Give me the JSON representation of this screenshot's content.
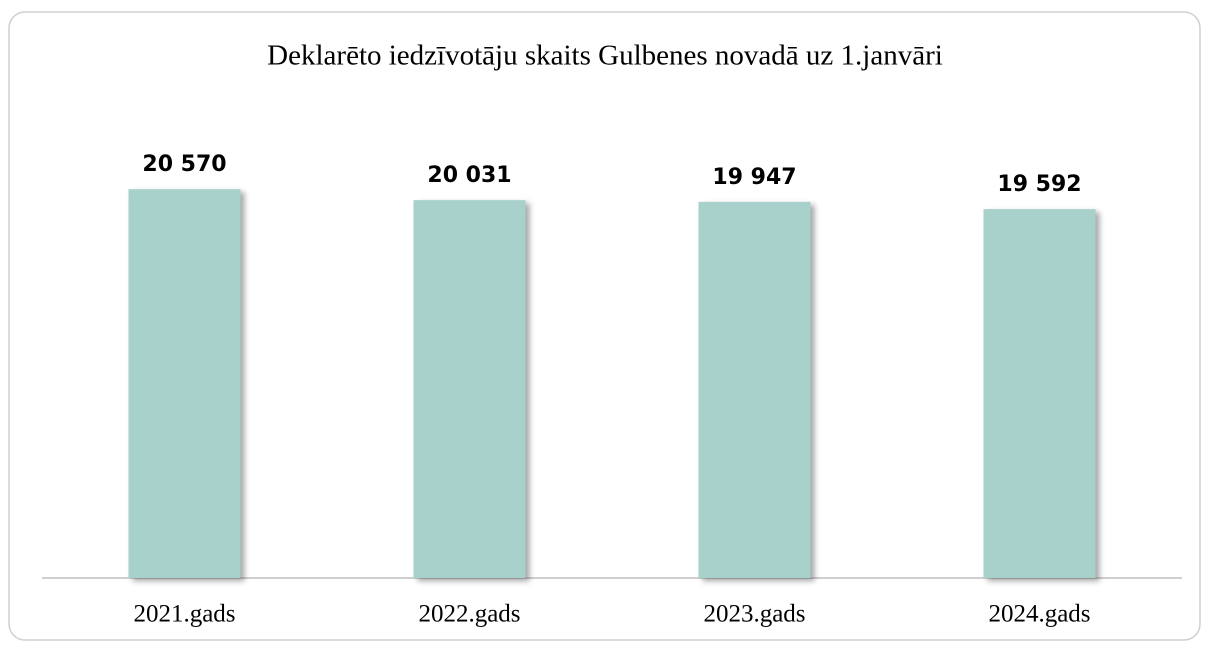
{
  "chart_data": {
    "type": "bar",
    "title": "Deklarēto iedzīvotāju skaits Gulbenes novadā uz 1.janvāri",
    "categories": [
      "2021.gads",
      "2022.gads",
      "2023.gads",
      "2024.gads"
    ],
    "values": [
      20570,
      20031,
      19947,
      19592
    ],
    "value_labels": [
      "20 570",
      "20 031",
      "19 947",
      "19 592"
    ],
    "color": "#a8d1cc",
    "ylim": [
      1500,
      22000
    ]
  }
}
